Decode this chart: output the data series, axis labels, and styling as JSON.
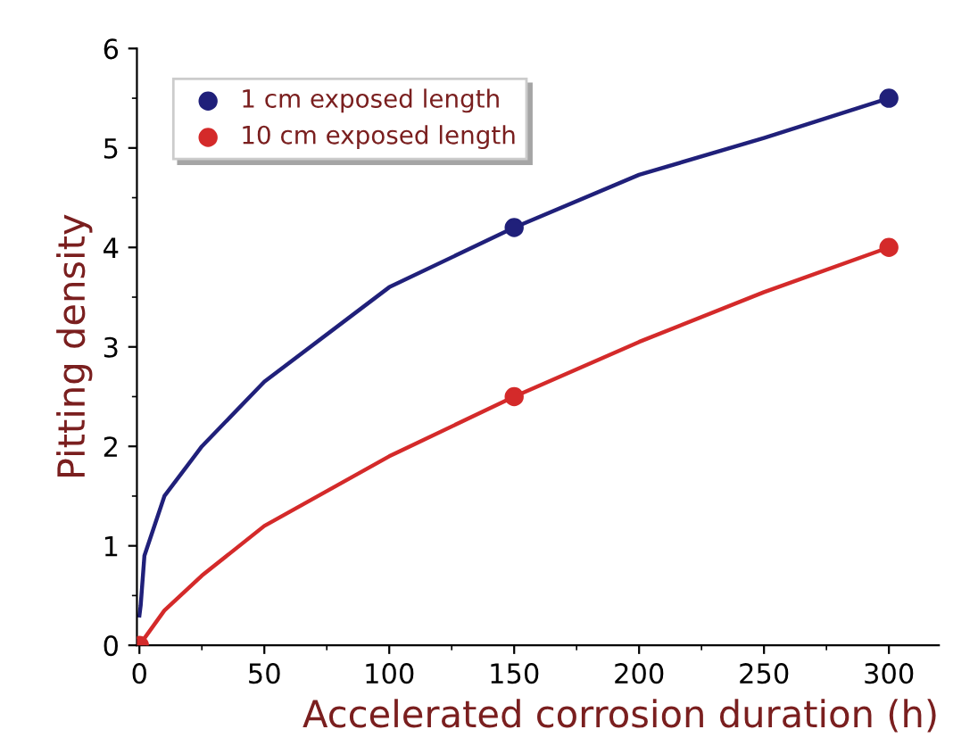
{
  "chart_data": {
    "type": "scatter",
    "xlabel": "Accelerated corrosion duration (h)",
    "ylabel": "Pitting density",
    "series": [
      {
        "name": "1 cm exposed length",
        "color": "#20207a",
        "x": [
          150,
          300
        ],
        "values": [
          4.2,
          5.5
        ],
        "marker": "circle"
      },
      {
        "name": "10 cm exposed length",
        "color": "#d42a2a",
        "x": [
          0,
          150,
          300
        ],
        "values": [
          0,
          2.5,
          4.0
        ],
        "marker": "circle"
      },
      {
        "type": "line",
        "color": "#20207a",
        "x": [
          0,
          0.5,
          2,
          10,
          25,
          50,
          100,
          150,
          200,
          250,
          300
        ],
        "values": [
          0.3,
          0.4,
          0.9,
          1.5,
          2.0,
          2.65,
          3.6,
          4.2,
          4.73,
          5.1,
          5.5
        ],
        "marker": "none"
      },
      {
        "type": "line",
        "color": "#d42a2a",
        "x": [
          0,
          10,
          25,
          50,
          100,
          150,
          200,
          250,
          300
        ],
        "values": [
          0,
          0.35,
          0.7,
          1.2,
          1.9,
          2.5,
          3.05,
          3.55,
          4.0
        ],
        "marker": "none"
      }
    ],
    "xlim": [
      -1,
      320
    ],
    "ylim": [
      0,
      6
    ],
    "xticks": [
      0,
      50,
      100,
      150,
      200,
      250,
      300
    ],
    "yticks": [
      0,
      1,
      2,
      3,
      4,
      5,
      6
    ],
    "grid": false,
    "legend": "top left"
  }
}
